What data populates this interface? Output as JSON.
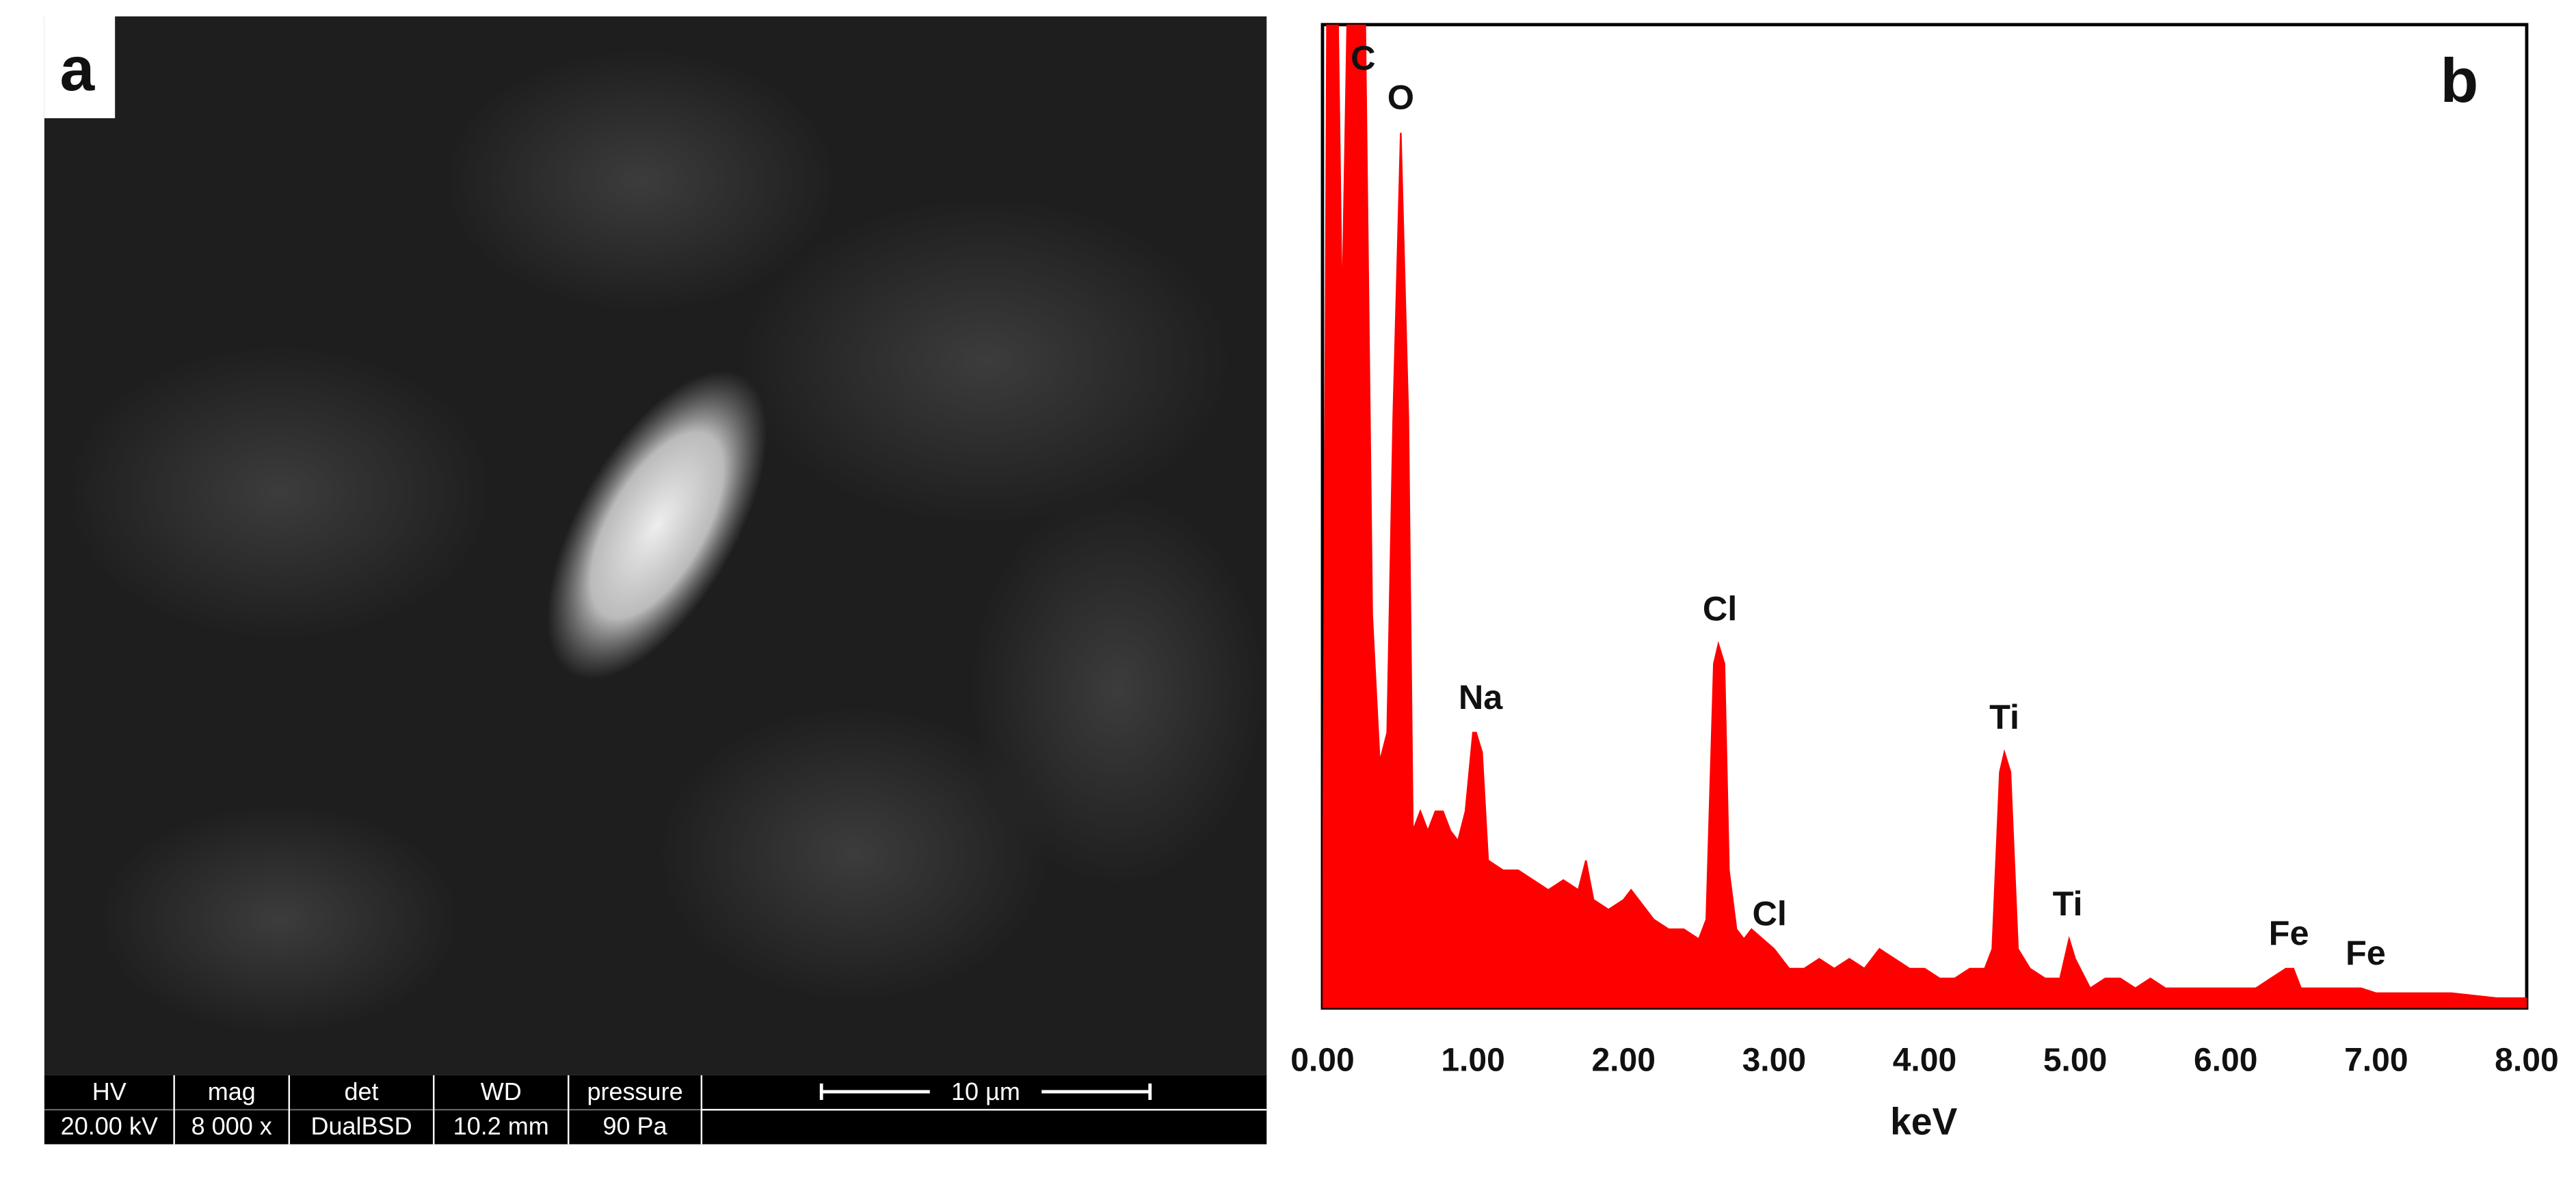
{
  "panel_a": {
    "label": "a",
    "info_bar": {
      "headers": [
        "HV",
        "mag",
        "det",
        "WD",
        "pressure"
      ],
      "values": [
        "20.00 kV",
        "8 000 x",
        "DualBSD",
        "10.2 mm",
        "90 Pa"
      ],
      "scale_bar": "10 µm"
    }
  },
  "chart_data": {
    "type": "area",
    "panel_label": "b",
    "x_label": "keV",
    "color": "#ff0000",
    "x": [
      0,
      0.03,
      0.1,
      0.13,
      0.17,
      0.28,
      0.33,
      0.38,
      0.43,
      0.47,
      0.52,
      0.57,
      0.6,
      0.65,
      0.7,
      0.75,
      0.8,
      0.85,
      0.9,
      0.95,
      1.0,
      1.02,
      1.06,
      1.1,
      1.2,
      1.3,
      1.4,
      1.5,
      1.6,
      1.7,
      1.75,
      1.8,
      1.9,
      2.0,
      2.05,
      2.1,
      2.2,
      2.3,
      2.4,
      2.5,
      2.55,
      2.6,
      2.63,
      2.67,
      2.7,
      2.75,
      2.8,
      2.85,
      3.0,
      3.1,
      3.2,
      3.3,
      3.4,
      3.5,
      3.6,
      3.7,
      3.8,
      3.9,
      4.0,
      4.1,
      4.2,
      4.3,
      4.4,
      4.45,
      4.5,
      4.53,
      4.57,
      4.62,
      4.7,
      4.8,
      4.9,
      4.96,
      5.0,
      5.1,
      5.2,
      5.3,
      5.4,
      5.5,
      5.6,
      5.8,
      6.0,
      6.2,
      6.3,
      6.4,
      6.45,
      6.5,
      6.7,
      6.9,
      7.0,
      7.2,
      7.5,
      7.8,
      8.0
    ],
    "values": [
      0,
      100,
      104,
      70,
      105,
      105,
      40,
      25,
      28,
      60,
      89,
      60,
      18,
      20,
      18,
      20,
      20,
      18,
      17,
      20,
      28,
      28,
      26,
      15,
      14,
      14,
      13,
      12,
      13,
      12,
      15,
      11,
      10,
      11,
      12,
      11,
      9,
      8,
      8,
      7,
      9,
      35,
      37,
      35,
      14,
      8,
      7,
      8,
      6,
      4,
      4,
      5,
      4,
      5,
      4,
      6,
      5,
      4,
      4,
      3,
      3,
      4,
      4,
      6,
      24,
      26,
      24,
      6,
      4,
      3,
      3,
      7,
      5,
      2,
      3,
      3,
      2,
      3,
      2,
      2,
      2,
      2,
      3,
      4,
      4,
      2,
      2,
      2,
      1.5,
      1.5,
      1.5,
      1,
      1
    ],
    "xlim": [
      0,
      8
    ],
    "ylim": [
      0,
      100
    ],
    "xticks": [
      {
        "value": 0,
        "label": "0.00"
      },
      {
        "value": 1,
        "label": "1.00"
      },
      {
        "value": 2,
        "label": "2.00"
      },
      {
        "value": 3,
        "label": "3.00"
      },
      {
        "value": 4,
        "label": "4.00"
      },
      {
        "value": 5,
        "label": "5.00"
      },
      {
        "value": 6,
        "label": "6.00"
      },
      {
        "value": 7,
        "label": "7.00"
      },
      {
        "value": 8,
        "label": "8.00"
      }
    ],
    "annotations": [
      {
        "text": "C",
        "x": 0.27
      },
      {
        "text": "O",
        "x": 0.52
      },
      {
        "text": "Na",
        "x": 1.05
      },
      {
        "text": "Cl",
        "x": 2.64
      },
      {
        "text": "Cl",
        "x": 2.97
      },
      {
        "text": "Ti",
        "x": 4.53
      },
      {
        "text": "Ti",
        "x": 4.95
      },
      {
        "text": "Fe",
        "x": 6.42
      },
      {
        "text": "Fe",
        "x": 6.93
      }
    ]
  }
}
